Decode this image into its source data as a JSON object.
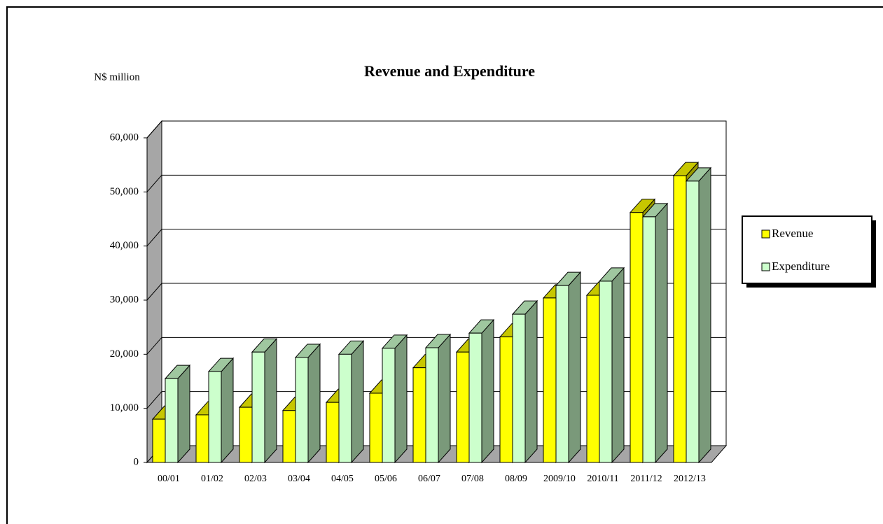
{
  "chart_data": {
    "type": "bar3d",
    "title": "Revenue and Expenditure",
    "y_label": "N$ million",
    "categories": [
      "00/01",
      "01/02",
      "02/03",
      "03/04",
      "04/05",
      "05/06",
      "06/07",
      "07/08",
      "08/09",
      "2009/10",
      "2010/11",
      "2011/12",
      "2012/13"
    ],
    "series": [
      {
        "name": "Revenue",
        "color": "#ffff00",
        "values": [
          8000,
          8800,
          10200,
          9600,
          11100,
          12800,
          17500,
          20400,
          23200,
          30400,
          30900,
          46200,
          53000
        ]
      },
      {
        "name": "Expenditure",
        "color": "#ccffcc",
        "values": [
          15500,
          16800,
          20400,
          19400,
          20000,
          21100,
          21200,
          23900,
          27400,
          32700,
          33500,
          45400,
          52000
        ]
      }
    ],
    "ylim": [
      0,
      60000
    ],
    "yticks": [
      0,
      {
        "value": 10000,
        "label": "10,000"
      },
      {
        "value": 20000,
        "label": "20,000"
      },
      {
        "value": 30000,
        "label": "30,000"
      },
      {
        "value": 40000,
        "label": "40,000"
      },
      {
        "value": 50000,
        "label": "50,000"
      },
      {
        "value": 60000,
        "label": "60,000"
      }
    ],
    "grid": true,
    "legend": "right"
  }
}
